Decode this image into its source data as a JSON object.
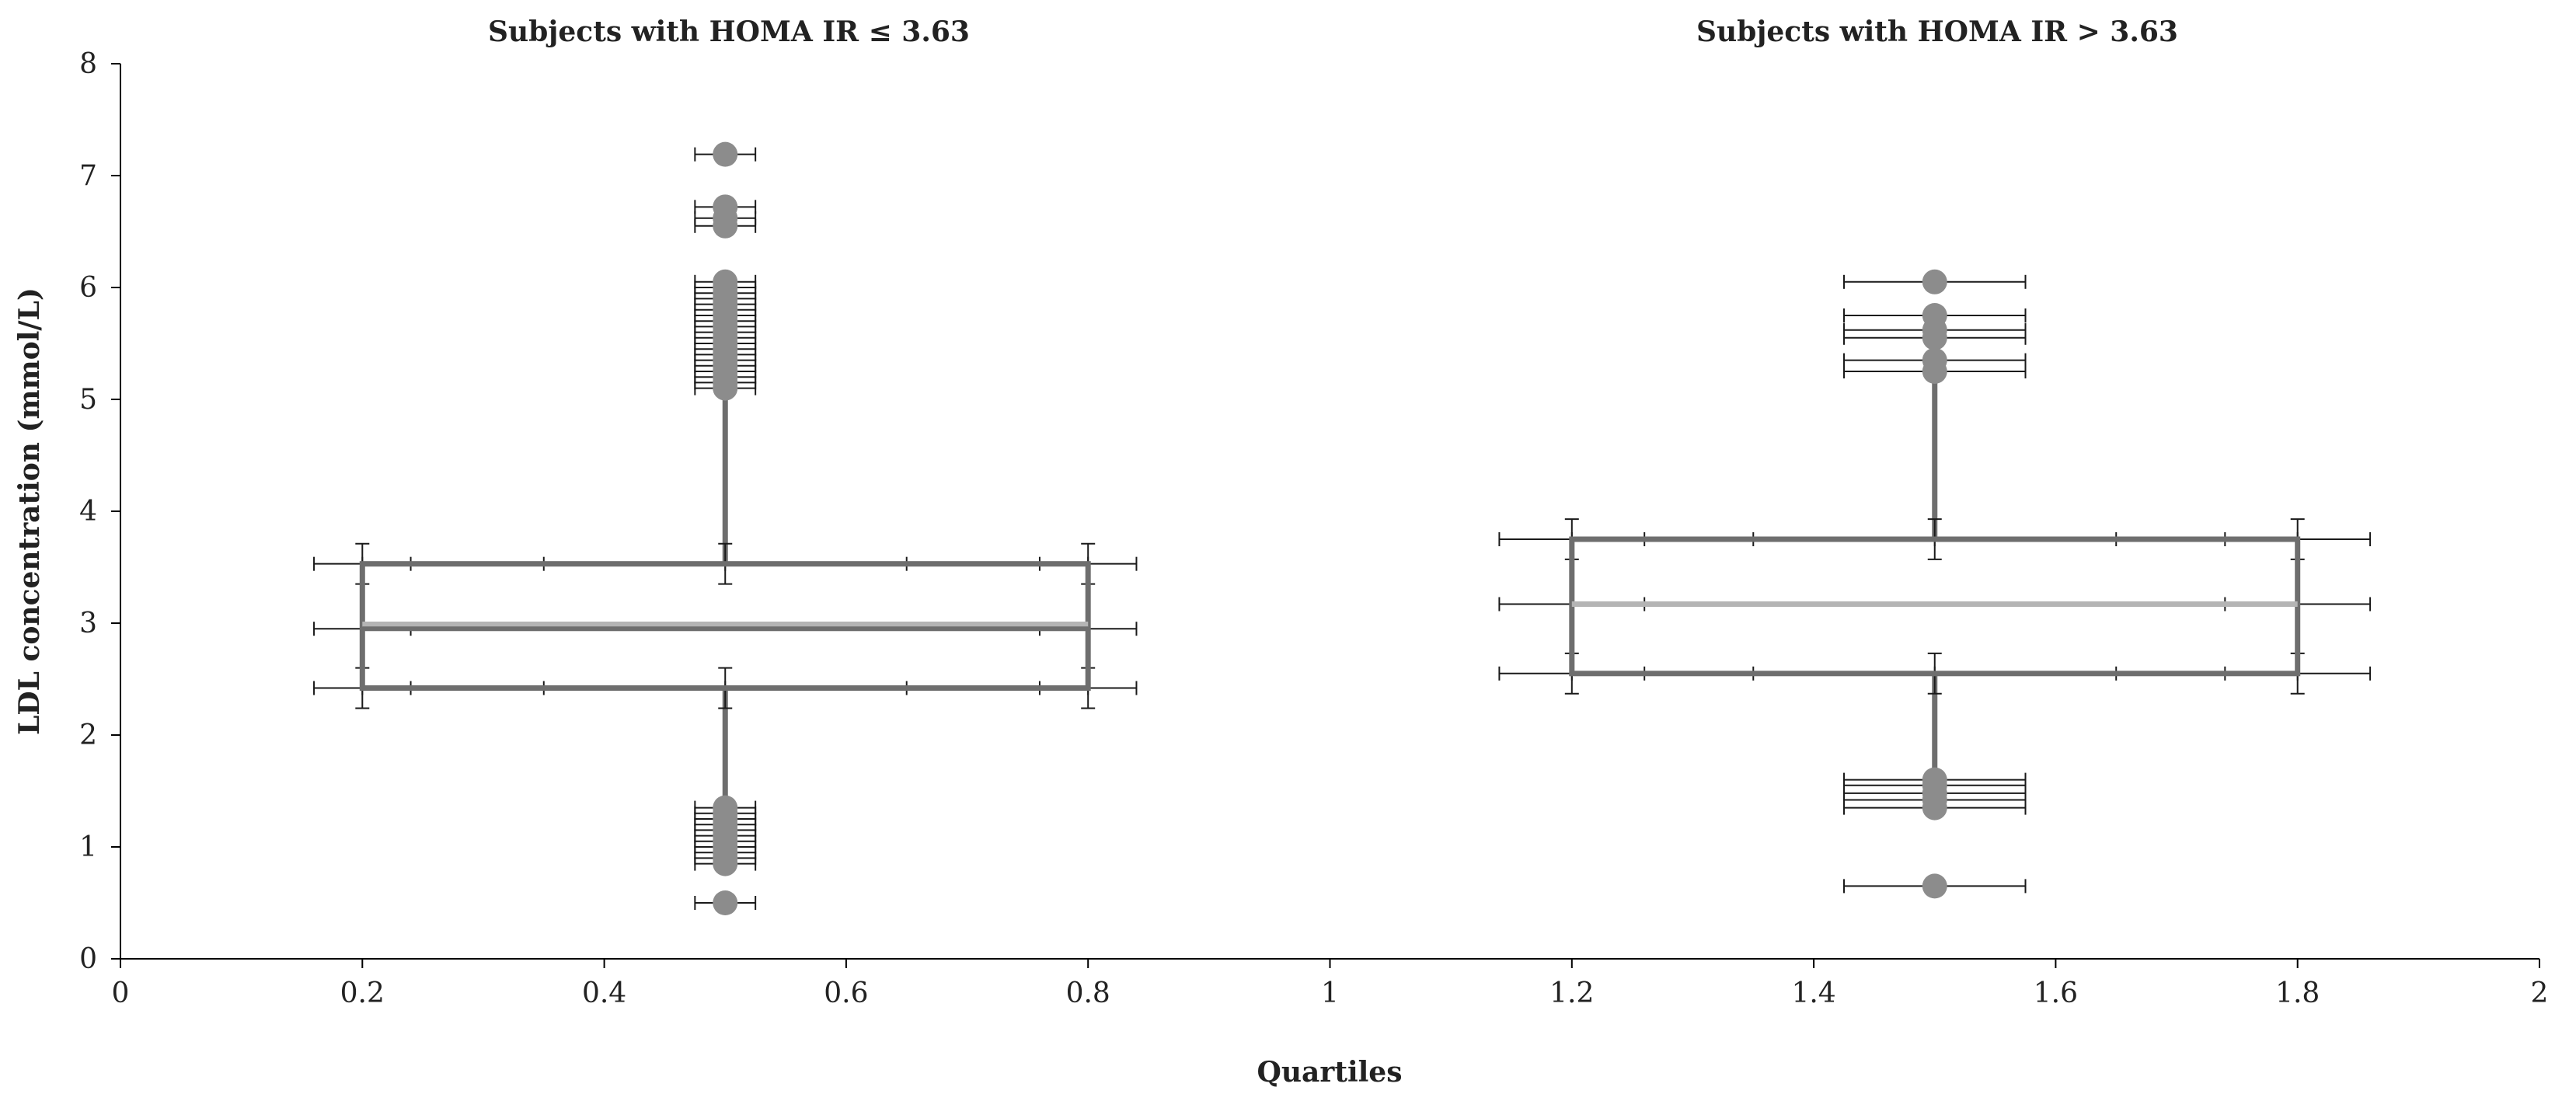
{
  "chart_data": {
    "type": "scatter",
    "subtype": "box-plot-drawn-as-scatter-with-error-bars",
    "titles": [
      "Subjects with HOMA IR ≤ 3.63",
      "Subjects with HOMA IR > 3.63"
    ],
    "xlabel": "Quartiles",
    "ylabel": "LDL concentration (mmol/L)",
    "xlim": [
      0,
      2
    ],
    "ylim": [
      0,
      8
    ],
    "x_ticks": [
      "0",
      "0.2",
      "0.4",
      "0.6",
      "0.8",
      "1",
      "1.2",
      "1.4",
      "1.6",
      "1.8",
      "2"
    ],
    "y_ticks": [
      "0",
      "1",
      "2",
      "3",
      "4",
      "5",
      "6",
      "7",
      "8"
    ],
    "colors": {
      "box_line": "#6e6e6e",
      "median_line": "#b4b4b4",
      "marker": "#8c8c8c",
      "error_bar": "#1a1a1a",
      "axis": "#000000"
    },
    "groups": [
      {
        "name": "Subjects with HOMA IR ≤ 3.63",
        "x_center": 0.5,
        "x_left": 0.2,
        "x_right": 0.8,
        "q1": 2.42,
        "median": 2.95,
        "median_light": 2.99,
        "q3": 3.53,
        "whisker_low": 2.42,
        "whisker_high": 3.53,
        "box_xerr": 0.04,
        "box_yerr": 0.18,
        "marker_xerr": 0.025,
        "upper_outliers": [
          5.1,
          5.15,
          5.2,
          5.25,
          5.3,
          5.35,
          5.4,
          5.45,
          5.5,
          5.55,
          5.6,
          5.65,
          5.7,
          5.75,
          5.8,
          5.85,
          5.9,
          5.95,
          6.0,
          6.05,
          6.55,
          6.62,
          6.72,
          7.19
        ],
        "lower_outliers": [
          0.85,
          0.9,
          0.95,
          1.0,
          1.05,
          1.1,
          1.15,
          1.2,
          1.25,
          1.3,
          1.35,
          0.5
        ]
      },
      {
        "name": "Subjects with HOMA IR > 3.63",
        "x_center": 1.5,
        "x_left": 1.2,
        "x_right": 1.8,
        "q1": 2.55,
        "median": 3.17,
        "median_light": 3.17,
        "q3": 3.75,
        "whisker_low": 2.55,
        "whisker_high": 3.75,
        "box_xerr": 0.06,
        "box_yerr": 0.18,
        "marker_xerr": 0.075,
        "upper_outliers": [
          5.25,
          5.35,
          5.55,
          5.62,
          5.75,
          6.05
        ],
        "lower_outliers": [
          1.35,
          1.42,
          1.48,
          1.55,
          1.6,
          0.65
        ]
      }
    ]
  }
}
